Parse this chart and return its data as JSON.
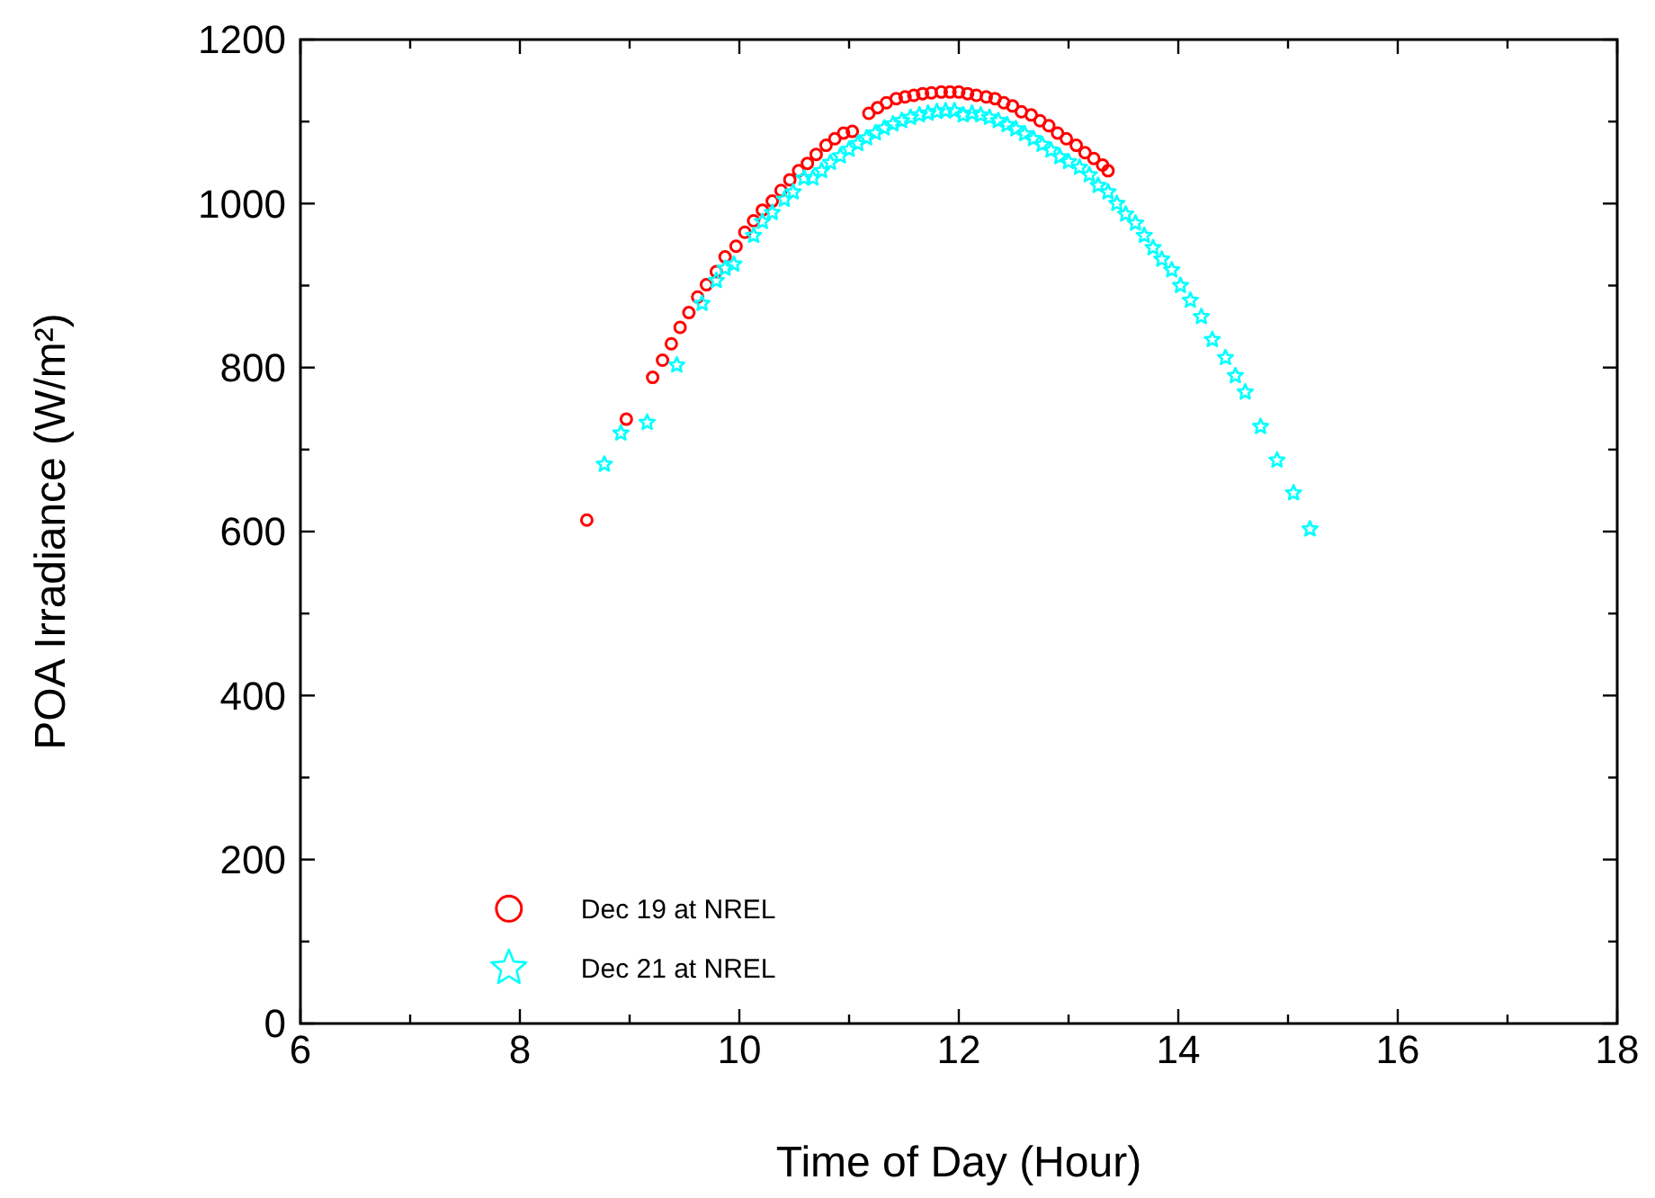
{
  "chart_data": {
    "type": "scatter",
    "xlabel": "Time of Day (Hour)",
    "ylabel": "POA Irradiance (W/m²)",
    "xlim": [
      6,
      18
    ],
    "xticks": [
      6,
      8,
      10,
      12,
      14,
      16,
      18
    ],
    "ylim": [
      0,
      1200
    ],
    "yticks": [
      0,
      200,
      400,
      600,
      800,
      1000,
      1200
    ],
    "grid": false,
    "legend": "bottom left",
    "series": [
      {
        "name": "Dec 19 at NREL",
        "color": "#ff0000",
        "marker": "circle",
        "x": [
          8.61,
          8.97,
          9.21,
          9.3,
          9.38,
          9.46,
          9.54,
          9.62,
          9.7,
          9.79,
          9.87,
          9.97,
          10.05,
          10.13,
          10.21,
          10.3,
          10.38,
          10.46,
          10.54,
          10.62,
          10.7,
          10.79,
          10.87,
          10.95,
          11.03,
          11.18,
          11.26,
          11.34,
          11.43,
          11.51,
          11.59,
          11.67,
          11.75,
          11.84,
          11.92,
          12.0,
          12.08,
          12.16,
          12.25,
          12.33,
          12.41,
          12.49,
          12.57,
          12.66,
          12.74,
          12.82,
          12.9,
          12.98,
          13.07,
          13.15,
          13.23,
          13.31,
          13.36
        ],
        "values": [
          614,
          737,
          788,
          809,
          829,
          849,
          867,
          886,
          901,
          917,
          935,
          948,
          965,
          979,
          992,
          1003,
          1016,
          1029,
          1040,
          1049,
          1060,
          1071,
          1079,
          1086,
          1088,
          1110,
          1117,
          1123,
          1128,
          1130,
          1132,
          1134,
          1135,
          1136,
          1136,
          1136,
          1134,
          1132,
          1130,
          1128,
          1123,
          1119,
          1112,
          1108,
          1101,
          1095,
          1086,
          1079,
          1071,
          1062,
          1055,
          1047,
          1040
        ]
      },
      {
        "name": "Dec 21 at NREL",
        "color": "#00ffff",
        "marker": "star",
        "x": [
          8.77,
          8.92,
          9.16,
          9.43,
          9.66,
          9.79,
          9.87,
          9.95,
          10.13,
          10.21,
          10.3,
          10.41,
          10.49,
          10.59,
          10.67,
          10.75,
          10.83,
          10.92,
          11.0,
          11.08,
          11.16,
          11.24,
          11.32,
          11.4,
          11.48,
          11.56,
          11.64,
          11.72,
          11.8,
          11.88,
          11.96,
          12.04,
          12.12,
          12.2,
          12.28,
          12.36,
          12.44,
          12.52,
          12.6,
          12.68,
          12.76,
          12.84,
          12.92,
          13.0,
          13.1,
          13.19,
          13.27,
          13.36,
          13.44,
          13.52,
          13.61,
          13.69,
          13.77,
          13.85,
          13.94,
          14.02,
          14.11,
          14.21,
          14.31,
          14.43,
          14.52,
          14.61,
          14.75,
          14.9,
          15.05,
          15.2
        ],
        "values": [
          682,
          720,
          733,
          803,
          878,
          906,
          921,
          926,
          961,
          978,
          989,
          1005,
          1014,
          1031,
          1031,
          1040,
          1050,
          1058,
          1066,
          1073,
          1080,
          1086,
          1092,
          1097,
          1101,
          1105,
          1108,
          1110,
          1112,
          1113,
          1113,
          1108,
          1110,
          1108,
          1105,
          1101,
          1096,
          1091,
          1085,
          1079,
          1072,
          1065,
          1057,
          1051,
          1044,
          1035,
          1022,
          1014,
          1000,
          987,
          976,
          961,
          946,
          932,
          919,
          900,
          882,
          862,
          834,
          812,
          790,
          770,
          728,
          687,
          647,
          603
        ]
      }
    ]
  }
}
